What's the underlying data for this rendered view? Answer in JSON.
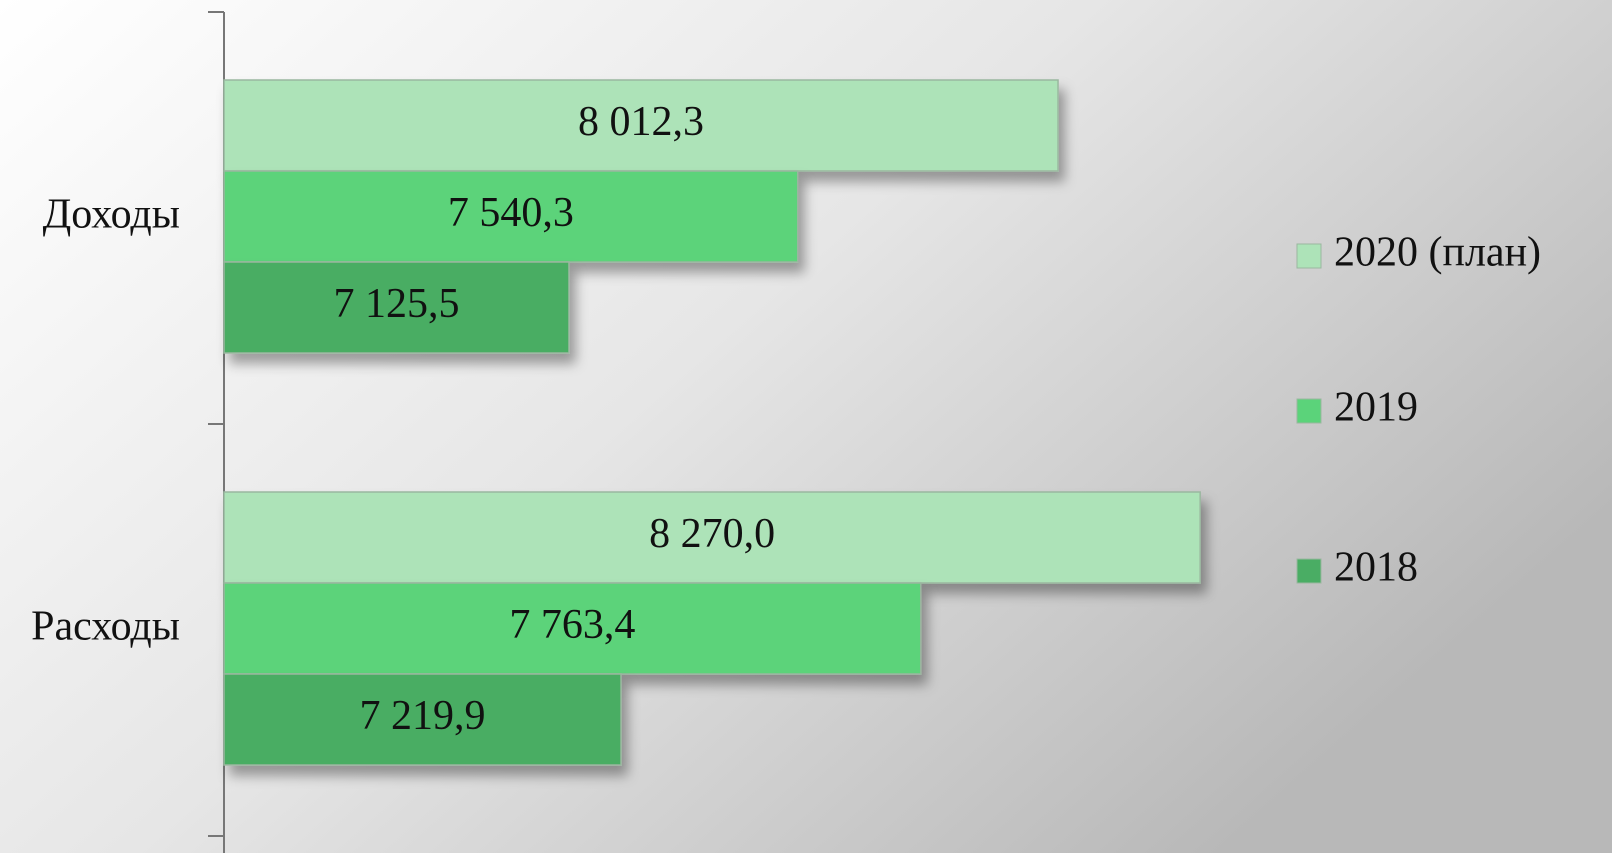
{
  "chart_data": {
    "type": "bar",
    "orientation": "horizontal",
    "categories": [
      "Доходы",
      "Расходы"
    ],
    "series": [
      {
        "name": "2020 (план)",
        "color": "#ade3b8",
        "values": [
          8012.3,
          8270.0
        ],
        "value_labels": [
          "8 012,3",
          "8 270,0"
        ]
      },
      {
        "name": "2019",
        "color": "#5bd37a",
        "values": [
          7540.3,
          7763.4
        ],
        "value_labels": [
          "7 540,3",
          "7 763,4"
        ]
      },
      {
        "name": "2018",
        "color": "#4aad64",
        "values": [
          7125.5,
          7219.9
        ],
        "value_labels": [
          "7 125,5",
          "7 219,9"
        ]
      }
    ],
    "xlim": [
      6500,
      8500
    ],
    "legend": "right"
  }
}
